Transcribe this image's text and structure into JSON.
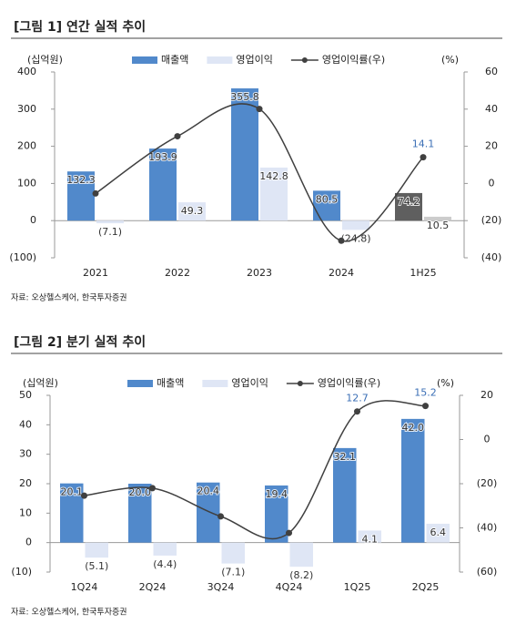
{
  "chart_data": [
    {
      "type": "combo",
      "title": "[그림 1] 연간 실적 추이",
      "y_label": "(십억원)",
      "y2_label": "(%)",
      "categories": [
        "2021",
        "2022",
        "2023",
        "2024",
        "1H25"
      ],
      "series": [
        {
          "name": "매출액",
          "type": "bar",
          "color": "#5189cb",
          "colors": [
            "#5189cb",
            "#5189cb",
            "#5189cb",
            "#5189cb",
            "#5f5f5f"
          ],
          "values": [
            132.3,
            193.9,
            355.8,
            80.5,
            74.2
          ]
        },
        {
          "name": "영업이익",
          "type": "bar",
          "color": "#dfe6f5",
          "colors": [
            "#dfe6f5",
            "#dfe6f5",
            "#dfe6f5",
            "#dfe6f5",
            "#cccccc"
          ],
          "values": [
            -7.1,
            49.3,
            142.8,
            -24.8,
            10.5
          ],
          "value_labels": [
            "(7.1)",
            "49.3",
            "142.8",
            "(24.8)",
            "10.5"
          ]
        },
        {
          "name": "영업이익률(우)",
          "type": "line",
          "axis": "y2",
          "color": "#404040",
          "values": [
            -5.4,
            25.4,
            40.1,
            -30.8,
            14.1
          ],
          "value_labels": [
            null,
            null,
            null,
            null,
            "14.1"
          ]
        }
      ],
      "ylim": [
        -100,
        400
      ],
      "yticks": [
        {
          "value": -100,
          "label": "(100)"
        },
        0,
        100,
        200,
        300,
        400
      ],
      "y2lim": [
        -40,
        60
      ],
      "y2ticks": [
        {
          "value": -40,
          "label": "(40)"
        },
        {
          "value": -20,
          "label": "(20)"
        },
        0,
        20,
        40,
        60
      ],
      "source": "자료: 오상헬스케어, 한국투자증권"
    },
    {
      "type": "combo",
      "title": "[그림 2] 분기 실적 추이",
      "y_label": "(십억원)",
      "y2_label": "(%)",
      "categories": [
        "1Q24",
        "2Q24",
        "3Q24",
        "4Q24",
        "1Q25",
        "2Q25"
      ],
      "series": [
        {
          "name": "매출액",
          "type": "bar",
          "color": "#5189cb",
          "values": [
            20.1,
            20.0,
            20.4,
            19.4,
            32.1,
            42.0
          ],
          "value_labels": [
            "20.1",
            "20.0",
            "20.4",
            "19.4",
            "32.1",
            "42.0"
          ]
        },
        {
          "name": "영업이익",
          "type": "bar",
          "color": "#dfe6f5",
          "values": [
            -5.1,
            -4.4,
            -7.1,
            -8.2,
            4.1,
            6.4
          ],
          "value_labels": [
            "(5.1)",
            "(4.4)",
            "(7.1)",
            "(8.2)",
            "4.1",
            "6.4"
          ]
        },
        {
          "name": "영업이익률(우)",
          "type": "line",
          "axis": "y2",
          "color": "#404040",
          "values": [
            -25.4,
            -22.0,
            -34.8,
            -42.3,
            12.7,
            15.2
          ],
          "value_labels": [
            null,
            null,
            null,
            null,
            "12.7",
            "15.2"
          ]
        }
      ],
      "ylim": [
        -10,
        50
      ],
      "yticks": [
        {
          "value": -10,
          "label": "(10)"
        },
        0,
        10,
        20,
        30,
        40,
        50
      ],
      "y2lim": [
        -60,
        20
      ],
      "y2ticks": [
        {
          "value": -60,
          "label": "(60)"
        },
        {
          "value": -40,
          "label": "(40)"
        },
        {
          "value": -20,
          "label": "(20)"
        },
        0,
        20
      ],
      "source": "자료: 오상헬스케어, 한국투자증권"
    }
  ]
}
